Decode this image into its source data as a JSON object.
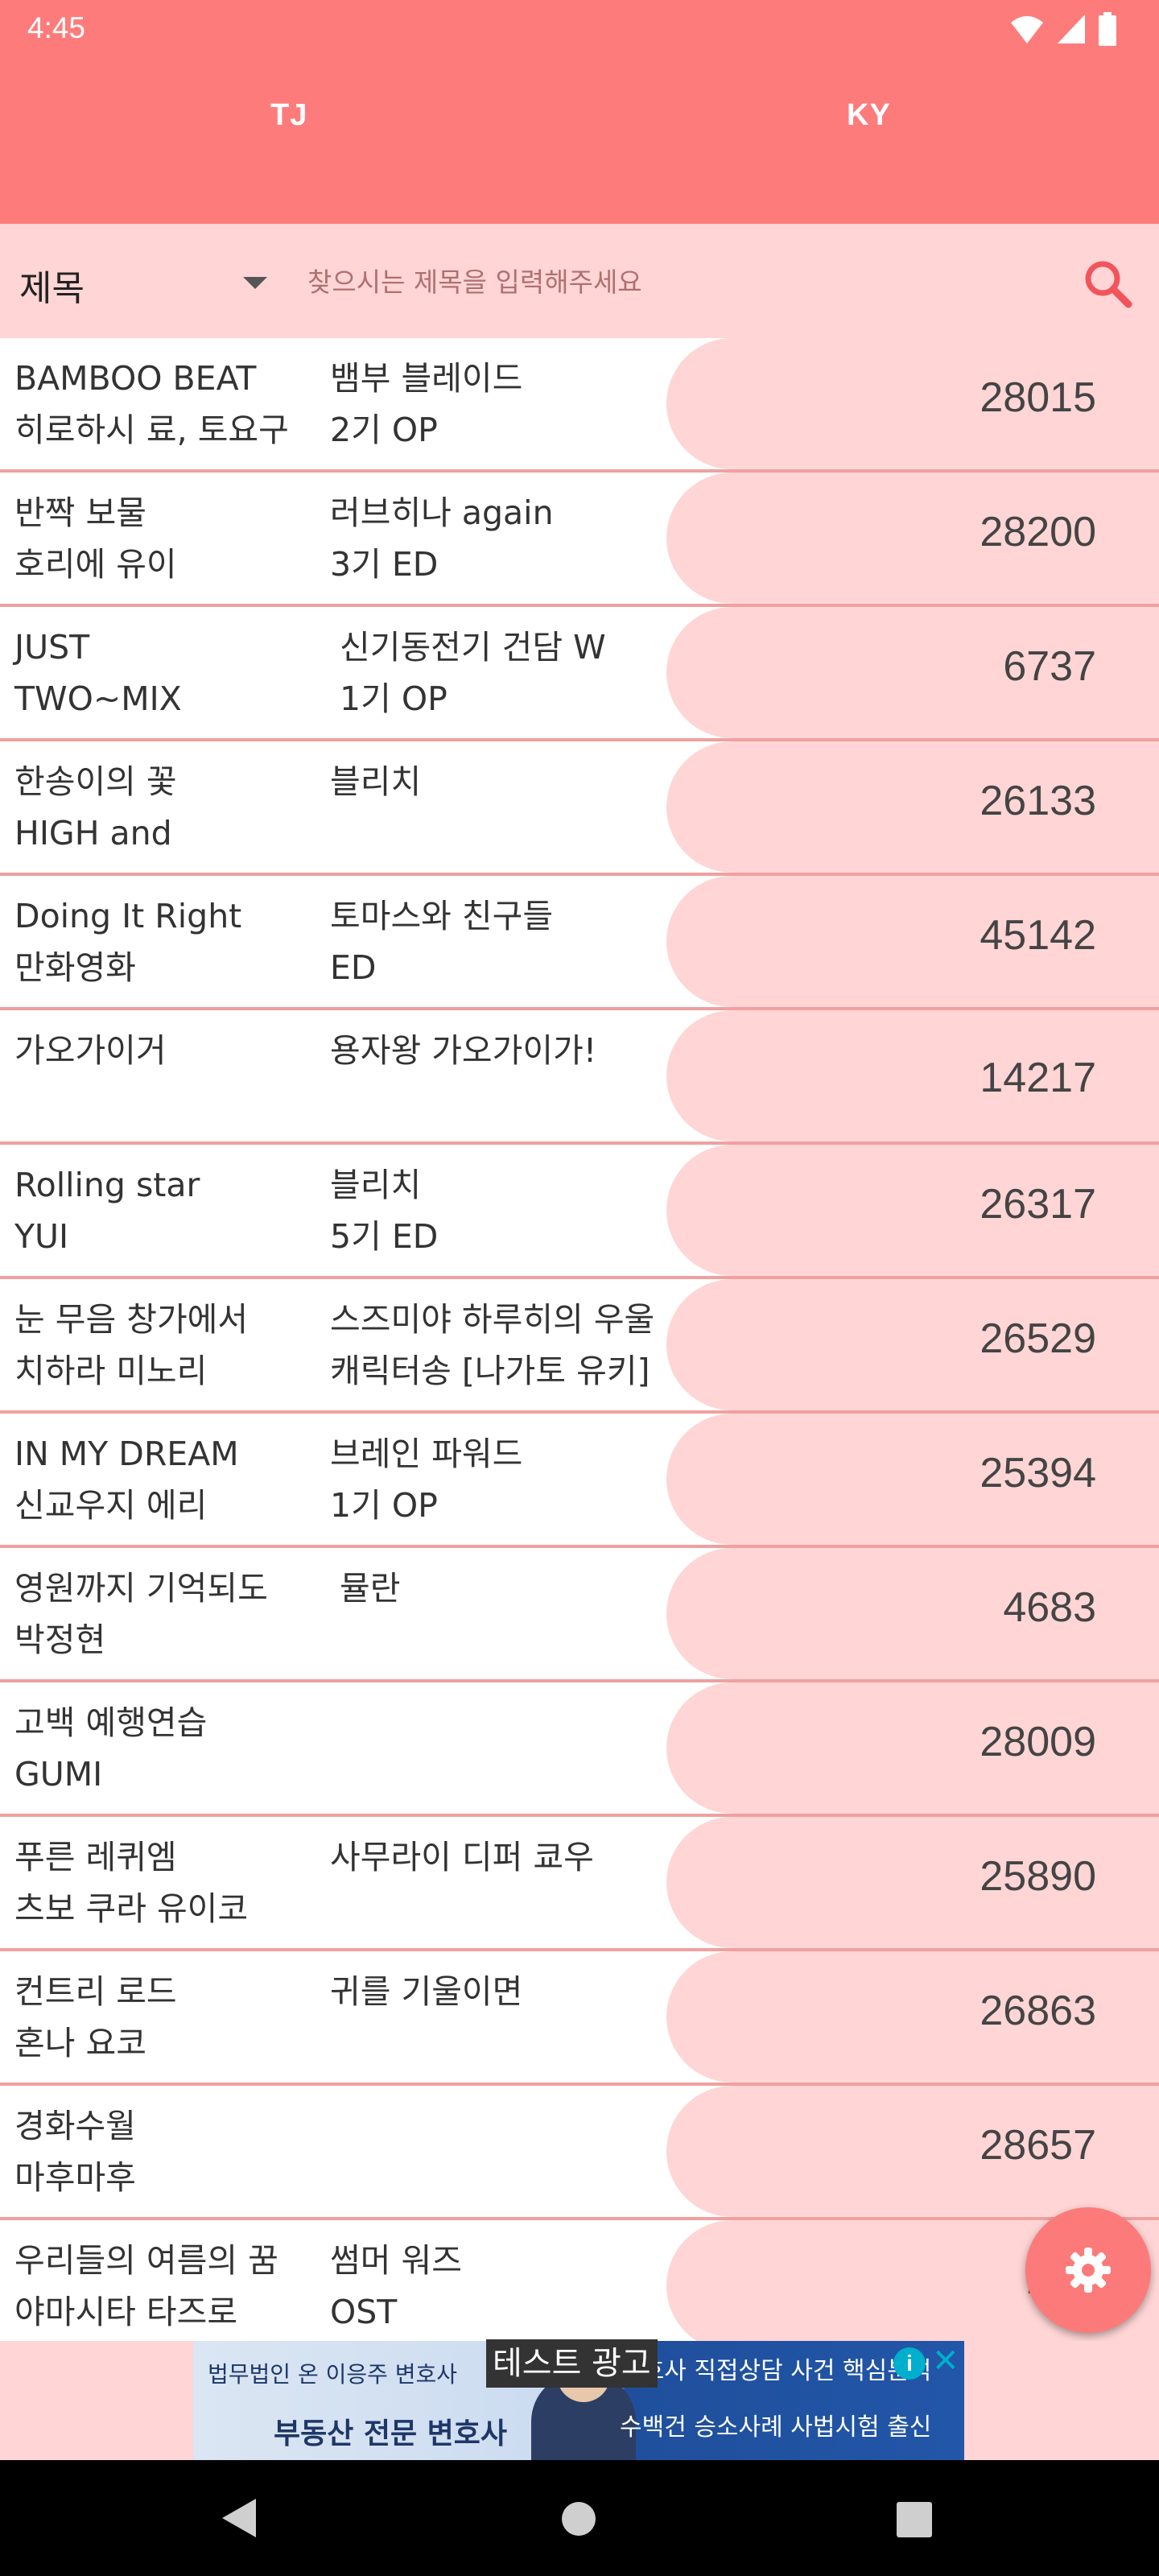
{
  "status": {
    "time": "4:45"
  },
  "tabs": [
    {
      "label": "TJ"
    },
    {
      "label": "KY"
    }
  ],
  "search": {
    "dropdown_value": "제목",
    "placeholder": "찾으시는 제목을 입력해주세요",
    "value": ""
  },
  "songs": [
    {
      "title": "BAMBOO BEAT",
      "artist": "히로하시 료, 토요구",
      "source": "뱀부 블레이드",
      "sub": "2기 OP",
      "number": "28015"
    },
    {
      "title": "반짝 보물",
      "artist": "호리에 유이",
      "source": "러브히나 again",
      "sub": "3기 ED",
      "number": "28200"
    },
    {
      "title": "JUST",
      "artist": "TWO~MIX",
      "source": "신기동전기 건담 W",
      "sub": "1기 OP",
      "number": "6737"
    },
    {
      "title": "한송이의 꽃",
      "artist": "HIGH and",
      "source": "블리치",
      "sub": "",
      "number": "26133"
    },
    {
      "title": "Doing It Right",
      "artist": "만화영화",
      "source": "토마스와 친구들",
      "sub": "ED",
      "number": "45142"
    },
    {
      "title": "가오가이거",
      "artist": "",
      "source": "용자왕 가오가이가!",
      "sub": "",
      "number": "14217"
    },
    {
      "title": "Rolling star",
      "artist": "YUI",
      "source": "블리치",
      "sub": "5기 ED",
      "number": "26317"
    },
    {
      "title": "눈 무음 창가에서",
      "artist": "치하라 미노리",
      "source": "스즈미야 하루히의 우울",
      "sub": "캐릭터송 [나가토 유키]",
      "number": "26529"
    },
    {
      "title": "IN MY DREAM",
      "artist": "신교우지 에리",
      "source": "브레인 파워드",
      "sub": "1기 OP",
      "number": "25394"
    },
    {
      "title": "영원까지 기억되도",
      "artist": "박정현",
      "source": "뮬란",
      "sub": "",
      "number": "4683"
    },
    {
      "title": "고백 예행연습",
      "artist": "GUMI",
      "source": "",
      "sub": "",
      "number": "28009"
    },
    {
      "title": "푸른 레퀴엠",
      "artist": "츠보 쿠라 유이코",
      "source": "사무라이 디퍼 쿄우",
      "sub": "",
      "number": "25890"
    },
    {
      "title": "컨트리 로드",
      "artist": "혼나 요코",
      "source": "귀를 기울이면",
      "sub": "",
      "number": "26863"
    },
    {
      "title": "경화수월",
      "artist": "마후마후",
      "source": "",
      "sub": "",
      "number": "28657"
    },
    {
      "title": "우리들의 여름의 꿈",
      "artist": "야마시타 타즈로",
      "source": "썸머 워즈",
      "sub": "OST",
      "number": "285"
    }
  ],
  "ad": {
    "label": "테스트 광고",
    "text_left": "법무법인 온 이응주 변호사",
    "text_left2": "부동산 전문 변호사",
    "text_right": "변호사 직접상담 사건 핵심분석",
    "text_right2": "수백건 승소사례 사법시험 출신"
  },
  "colors": {
    "primary": "#fe7b7b",
    "light": "#ffd5d5",
    "divider": "#f0a0a0"
  }
}
